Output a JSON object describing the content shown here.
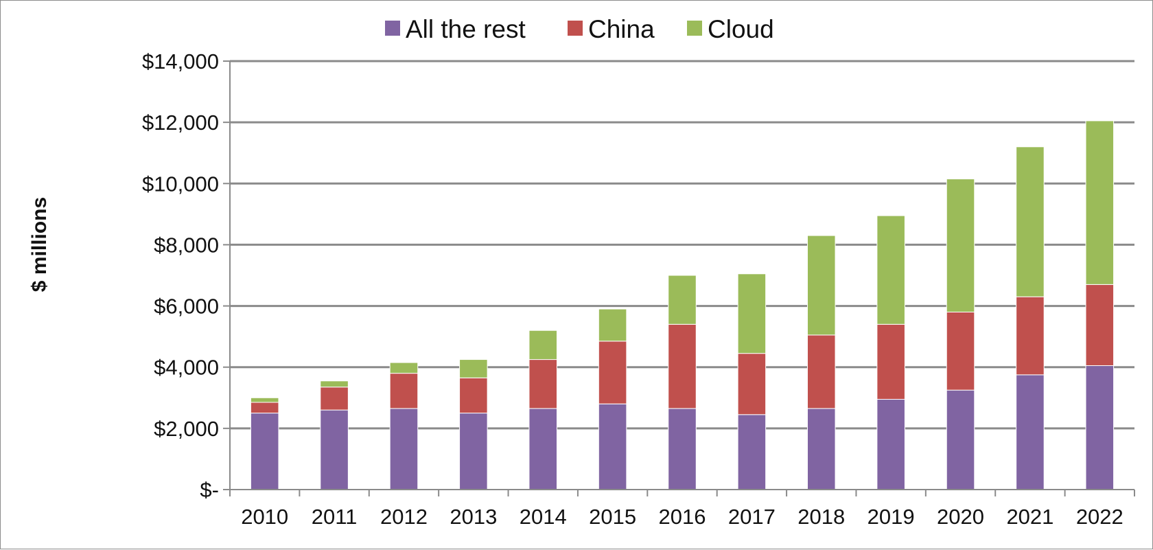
{
  "chart_data": {
    "type": "bar",
    "stacked": true,
    "categories": [
      "2010",
      "2011",
      "2012",
      "2013",
      "2014",
      "2015",
      "2016",
      "2017",
      "2018",
      "2019",
      "2020",
      "2021",
      "2022"
    ],
    "series": [
      {
        "name": "All the rest",
        "color": "#8064a2",
        "values": [
          2500,
          2600,
          2650,
          2500,
          2650,
          2800,
          2650,
          2450,
          2650,
          2950,
          3250,
          3750,
          4050
        ]
      },
      {
        "name": "China",
        "color": "#c0504d",
        "values": [
          350,
          750,
          1150,
          1150,
          1600,
          2050,
          2750,
          2000,
          2400,
          2450,
          2550,
          2550,
          2650
        ]
      },
      {
        "name": "Cloud",
        "color": "#9bbb59",
        "values": [
          150,
          200,
          350,
          600,
          950,
          1050,
          1600,
          2600,
          3250,
          3550,
          4350,
          4900,
          5350
        ]
      }
    ],
    "ylim": [
      0,
      14000
    ],
    "yticks": [
      {
        "value": 0,
        "label": "$-"
      },
      {
        "value": 2000,
        "label": "$2,000"
      },
      {
        "value": 4000,
        "label": "$4,000"
      },
      {
        "value": 6000,
        "label": "$6,000"
      },
      {
        "value": 8000,
        "label": "$8,000"
      },
      {
        "value": 10000,
        "label": "$10,000"
      },
      {
        "value": 12000,
        "label": "$12,000"
      },
      {
        "value": 14000,
        "label": "$14,000"
      }
    ],
    "ylabel": "$ millions",
    "xlabel": "",
    "grid": true,
    "legend_position": "top"
  }
}
